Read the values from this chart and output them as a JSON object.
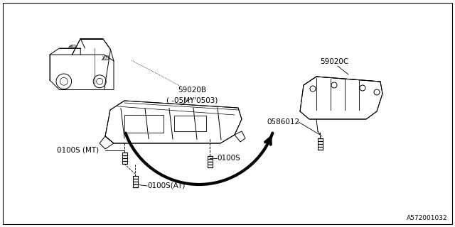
{
  "bg_color": "#ffffff",
  "border_color": "#000000",
  "diagram_id": "A572001032",
  "label_59020C": "59020C",
  "label_59020B": "59020B",
  "label_note": "( -05MY’0503)",
  "label_0586012": "0586012",
  "label_0100S": "0100S",
  "label_0100S_MT": "0100S (MT)",
  "label_0100S_AT": "0100S(AT)",
  "line_color": "#000000",
  "lw_thin": 0.7,
  "lw_thick": 3.0
}
